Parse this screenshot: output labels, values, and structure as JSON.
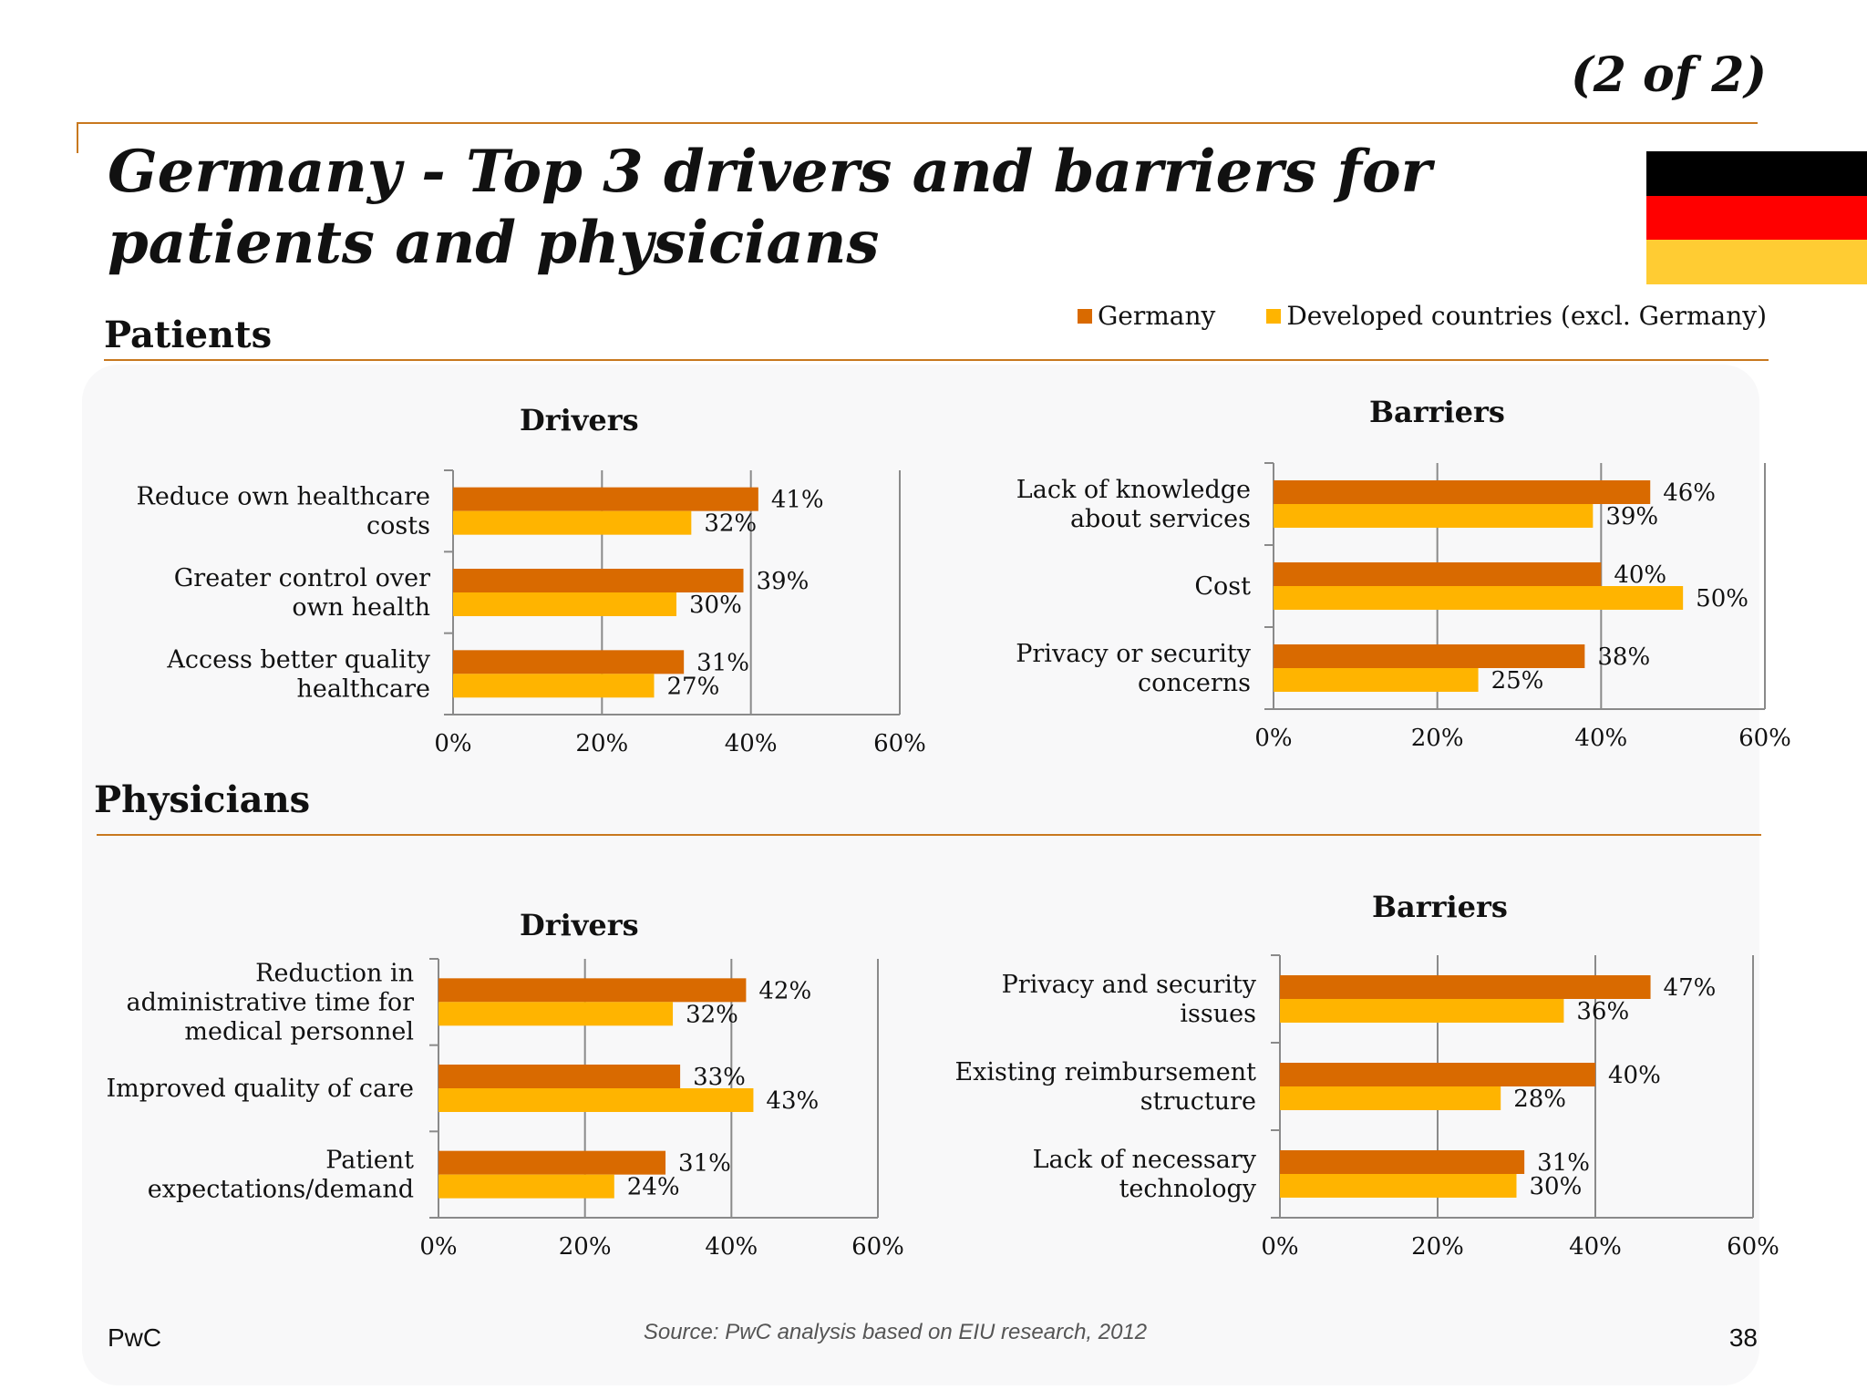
{
  "header": {
    "page_number_label": "(2 of 2)",
    "title": "Germany - Top 3 drivers and barriers for patients and physicians"
  },
  "flag": {
    "colors": [
      "#000000",
      "#ff0000",
      "#ffcc33"
    ]
  },
  "legend": {
    "items": [
      {
        "label": "Germany",
        "color": "#d96a00"
      },
      {
        "label": "Developed countries (excl. Germany)",
        "color": "#ffb400"
      }
    ]
  },
  "sections": {
    "patients": "Patients",
    "physicians": "Physicians"
  },
  "chart_data": [
    {
      "type": "bar",
      "orientation": "horizontal",
      "title": "Drivers",
      "group": "Patients",
      "categories": [
        "Reduce own healthcare costs",
        "Greater control over own health",
        "Access better quality healthcare"
      ],
      "series": [
        {
          "name": "Germany",
          "values": [
            41,
            39,
            31
          ],
          "labels": [
            "41%",
            "39%",
            "31%"
          ]
        },
        {
          "name": "Developed countries (excl. Germany)",
          "values": [
            32,
            30,
            27
          ],
          "labels": [
            "32%",
            "30%",
            "27%"
          ]
        }
      ],
      "xlim": [
        0,
        60
      ],
      "ticks": [
        "0%",
        "20%",
        "40%",
        "60%"
      ],
      "grid": true
    },
    {
      "type": "bar",
      "orientation": "horizontal",
      "title": "Barriers",
      "group": "Patients",
      "categories": [
        "Lack of knowledge about services",
        "Cost",
        "Privacy or security concerns"
      ],
      "series": [
        {
          "name": "Germany",
          "values": [
            46,
            40,
            38
          ],
          "labels": [
            "46%",
            "40%",
            "38%"
          ]
        },
        {
          "name": "Developed countries (excl. Germany)",
          "values": [
            39,
            50,
            25
          ],
          "labels": [
            "39%",
            "50%",
            "25%"
          ]
        }
      ],
      "xlim": [
        0,
        60
      ],
      "ticks": [
        "0%",
        "20%",
        "40%",
        "60%"
      ],
      "grid": true
    },
    {
      "type": "bar",
      "orientation": "horizontal",
      "title": "Drivers",
      "group": "Physicians",
      "categories": [
        "Reduction in administrative time for medical personnel",
        "Improved quality of care",
        "Patient expectations/demand"
      ],
      "series": [
        {
          "name": "Germany",
          "values": [
            42,
            33,
            31
          ],
          "labels": [
            "42%",
            "33%",
            "31%"
          ]
        },
        {
          "name": "Developed countries (excl. Germany)",
          "values": [
            32,
            43,
            24
          ],
          "labels": [
            "32%",
            "43%",
            "24%"
          ]
        }
      ],
      "xlim": [
        0,
        60
      ],
      "ticks": [
        "0%",
        "20%",
        "40%",
        "60%"
      ],
      "grid": true
    },
    {
      "type": "bar",
      "orientation": "horizontal",
      "title": "Barriers",
      "group": "Physicians",
      "categories": [
        "Privacy and security issues",
        "Existing reimbursement structure",
        "Lack of necessary technology"
      ],
      "series": [
        {
          "name": "Germany",
          "values": [
            47,
            40,
            31
          ],
          "labels": [
            "47%",
            "40%",
            "31%"
          ]
        },
        {
          "name": "Developed countries (excl. Germany)",
          "values": [
            36,
            28,
            30
          ],
          "labels": [
            "36%",
            "28%",
            "30%"
          ]
        }
      ],
      "xlim": [
        0,
        60
      ],
      "ticks": [
        "0%",
        "20%",
        "40%",
        "60%"
      ],
      "grid": true
    }
  ],
  "footer": {
    "left": "PwC",
    "source": "Source: PwC analysis based on EIU research, 2012",
    "page": "38"
  }
}
